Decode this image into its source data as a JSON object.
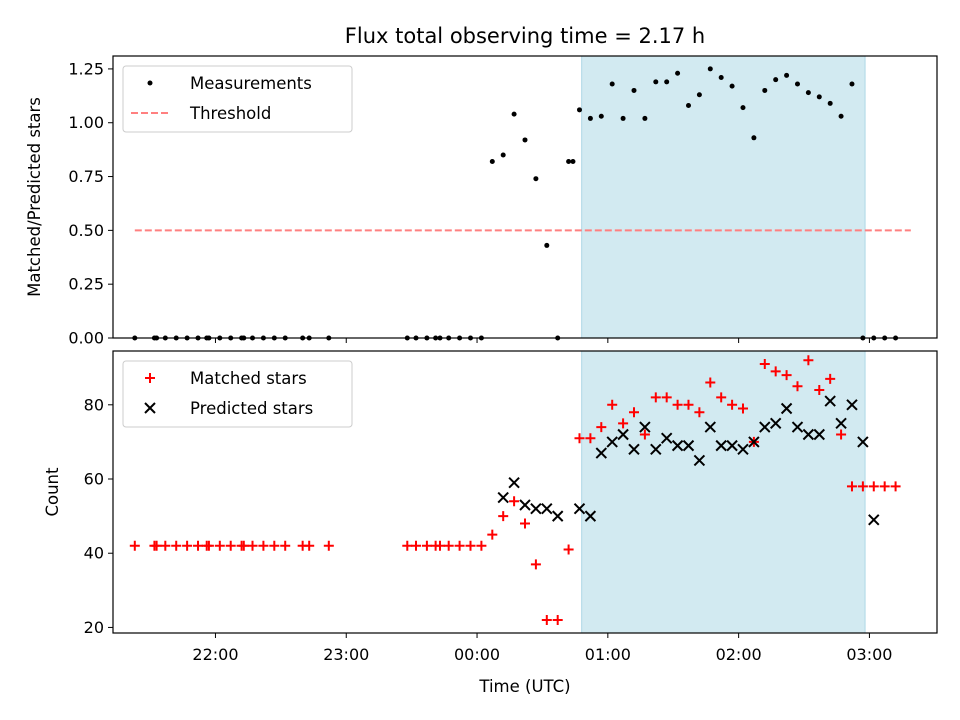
{
  "title": "Flux total observing time = 2.17 h",
  "xlabel": "Time (UTC)",
  "colors": {
    "shade": "#add8e6",
    "threshold": "#ff8080",
    "matched": "#ff0000",
    "predicted": "#000000",
    "measurement": "#000000"
  },
  "chart_data": [
    {
      "type": "scatter",
      "ylabel": "Matched/Predicted stars",
      "ylim": [
        0.0,
        1.31
      ],
      "xlim": [
        "21:13",
        "03:31"
      ],
      "yticks": [
        0.0,
        0.25,
        0.5,
        0.75,
        1.0,
        1.25
      ],
      "ytick_labels": [
        "0.00",
        "0.25",
        "0.50",
        "0.75",
        "1.00",
        "1.25"
      ],
      "shaded_region": [
        "00:48",
        "02:58"
      ],
      "legend": {
        "position": "top-left",
        "entries": [
          "Measurements",
          "Threshold"
        ]
      },
      "threshold": {
        "name": "Threshold",
        "y": 0.5,
        "x_range": [
          "21:23",
          "03:19"
        ]
      },
      "series": [
        {
          "name": "Measurements",
          "marker": "dot",
          "x": [
            "21:23",
            "21:32",
            "21:33",
            "21:37",
            "21:42",
            "21:47",
            "21:52",
            "21:56",
            "21:57",
            "22:02",
            "22:07",
            "22:12",
            "22:13",
            "22:17",
            "22:22",
            "22:27",
            "22:32",
            "22:40",
            "22:43",
            "22:52",
            "23:28",
            "23:32",
            "23:37",
            "23:41",
            "23:43",
            "23:47",
            "23:52",
            "23:57",
            "24:02",
            "24:07",
            "24:12",
            "24:17",
            "24:22",
            "24:27",
            "24:32",
            "24:37",
            "24:42",
            "24:44",
            "24:47",
            "24:52",
            "24:57",
            "25:02",
            "25:07",
            "25:12",
            "25:17",
            "25:22",
            "25:27",
            "25:32",
            "25:37",
            "25:42",
            "25:47",
            "25:52",
            "25:57",
            "26:02",
            "26:07",
            "26:12",
            "26:17",
            "26:22",
            "26:27",
            "26:32",
            "26:37",
            "26:42",
            "26:47",
            "26:52",
            "26:57",
            "27:02",
            "27:07",
            "27:12"
          ],
          "y": [
            0,
            0,
            0,
            0,
            0,
            0,
            0,
            0,
            0,
            0,
            0,
            0,
            0,
            0,
            0,
            0,
            0,
            0,
            0,
            0,
            0,
            0,
            0,
            0,
            0,
            0,
            0,
            0,
            0,
            0.82,
            0.85,
            1.04,
            0.92,
            0.74,
            0.43,
            0,
            0.82,
            0.82,
            1.06,
            1.02,
            1.03,
            1.18,
            1.02,
            1.15,
            1.02,
            1.19,
            1.19,
            1.23,
            1.08,
            1.13,
            1.25,
            1.21,
            1.17,
            1.07,
            0.93,
            1.15,
            1.2,
            1.22,
            1.18,
            1.14,
            1.12,
            1.09,
            1.03,
            1.18,
            0,
            0,
            0,
            0
          ]
        }
      ]
    },
    {
      "type": "scatter",
      "ylabel": "Count",
      "ylim": [
        18.5,
        94.5
      ],
      "xlim": [
        "21:13",
        "03:31"
      ],
      "xticks": [
        "22:00",
        "23:00",
        "00:00",
        "01:00",
        "02:00",
        "03:00"
      ],
      "shaded_region": [
        "00:48",
        "02:58"
      ],
      "legend": {
        "position": "top-left",
        "entries": [
          "Matched stars",
          "Predicted stars"
        ]
      },
      "series": [
        {
          "name": "Matched stars",
          "marker": "plus",
          "x": [
            "21:23",
            "21:32",
            "21:33",
            "21:37",
            "21:42",
            "21:47",
            "21:52",
            "21:56",
            "21:57",
            "22:02",
            "22:07",
            "22:12",
            "22:13",
            "22:17",
            "22:22",
            "22:27",
            "22:32",
            "22:40",
            "22:43",
            "22:52",
            "23:28",
            "23:32",
            "23:37",
            "23:41",
            "23:43",
            "23:47",
            "23:52",
            "23:57",
            "24:02",
            "24:07",
            "24:12",
            "24:17",
            "24:22",
            "24:27",
            "24:32",
            "24:37",
            "24:42",
            "24:47",
            "24:52",
            "24:57",
            "25:02",
            "25:07",
            "25:12",
            "25:17",
            "25:22",
            "25:27",
            "25:32",
            "25:37",
            "25:42",
            "25:47",
            "25:52",
            "25:57",
            "26:02",
            "26:07",
            "26:12",
            "26:17",
            "26:22",
            "26:27",
            "26:32",
            "26:37",
            "26:42",
            "26:47",
            "26:52",
            "26:57",
            "27:02",
            "27:07",
            "27:12"
          ],
          "y": [
            42,
            42,
            42,
            42,
            42,
            42,
            42,
            42,
            42,
            42,
            42,
            42,
            42,
            42,
            42,
            42,
            42,
            42,
            42,
            42,
            42,
            42,
            42,
            42,
            42,
            42,
            42,
            42,
            42,
            45,
            50,
            54,
            48,
            37,
            22,
            22,
            41,
            71,
            71,
            74,
            80,
            75,
            78,
            72,
            82,
            82,
            80,
            80,
            78,
            86,
            82,
            80,
            79,
            70,
            91,
            89,
            88,
            85,
            92,
            84,
            87,
            72,
            58,
            58,
            58,
            58,
            58
          ]
        },
        {
          "name": "Predicted stars",
          "marker": "x",
          "x": [
            "24:12",
            "24:17",
            "24:22",
            "24:27",
            "24:32",
            "24:37",
            "24:47",
            "24:52",
            "24:57",
            "25:02",
            "25:07",
            "25:12",
            "25:17",
            "25:22",
            "25:27",
            "25:32",
            "25:37",
            "25:42",
            "25:47",
            "25:52",
            "25:57",
            "26:02",
            "26:07",
            "26:12",
            "26:17",
            "26:22",
            "26:27",
            "26:32",
            "26:37",
            "26:42",
            "26:47",
            "26:52",
            "26:57",
            "27:02"
          ],
          "y": [
            55,
            59,
            53,
            52,
            52,
            50,
            52,
            50,
            67,
            70,
            72,
            68,
            74,
            68,
            71,
            69,
            69,
            65,
            74,
            69,
            69,
            68,
            70,
            74,
            75,
            79,
            74,
            72,
            72,
            81,
            75,
            80,
            70,
            49
          ]
        }
      ]
    }
  ]
}
